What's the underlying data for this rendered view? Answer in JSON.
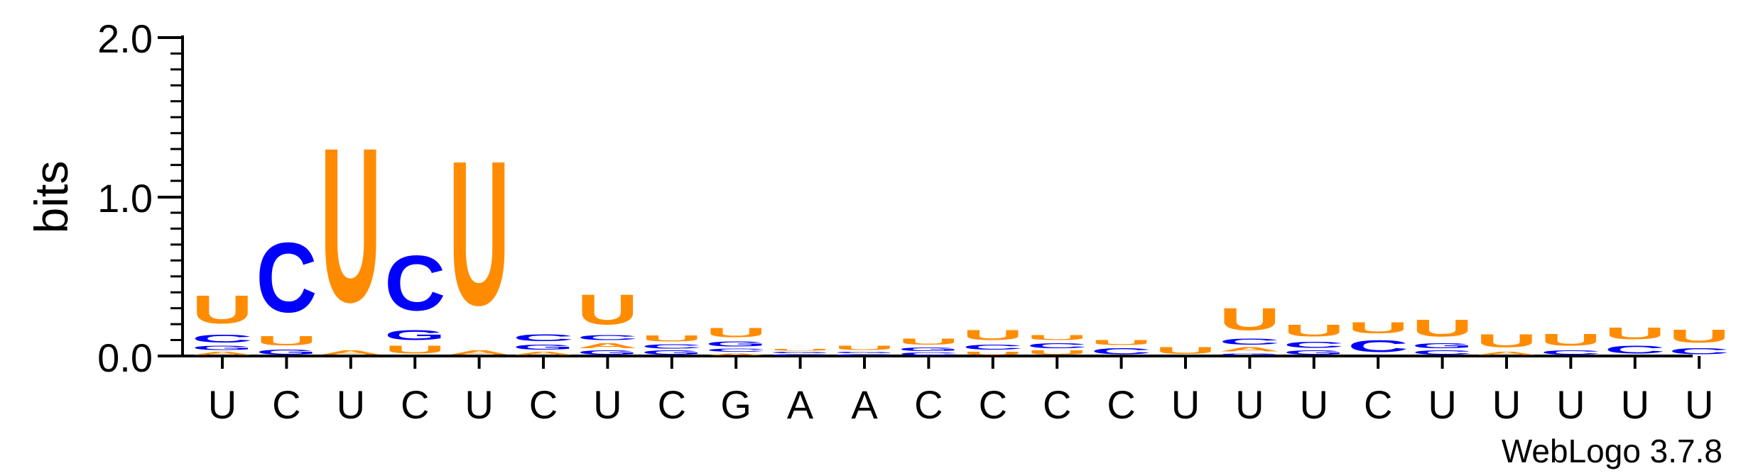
{
  "chart_data": {
    "type": "sequence-logo",
    "ylabel": "bits",
    "ylim": [
      0,
      2
    ],
    "yticks": [
      "0.0",
      "1.0",
      "2.0"
    ],
    "consensus": [
      "U",
      "C",
      "U",
      "C",
      "U",
      "C",
      "U",
      "C",
      "G",
      "A",
      "A",
      "C",
      "C",
      "C",
      "C",
      "U",
      "U",
      "U",
      "C",
      "U",
      "U",
      "U",
      "U",
      "U"
    ],
    "colors": {
      "U": "#FF8C00",
      "A": "#FF8C00",
      "C": "#0000FF",
      "G": "#0000FF"
    },
    "positions": [
      {
        "stack": [
          [
            "A",
            0.03
          ],
          [
            "G",
            0.04
          ],
          [
            "C",
            0.08
          ],
          [
            "U",
            0.28
          ]
        ]
      },
      {
        "stack": [
          [
            "G",
            0.05
          ],
          [
            "U",
            0.09
          ],
          [
            "C",
            0.7
          ]
        ]
      },
      {
        "stack": [
          [
            "A",
            0.04
          ],
          [
            "U",
            1.55
          ]
        ]
      },
      {
        "stack": [
          [
            "U",
            0.08
          ],
          [
            "G",
            0.1
          ],
          [
            "C",
            0.55
          ]
        ]
      },
      {
        "stack": [
          [
            "A",
            0.04
          ],
          [
            "U",
            1.45
          ]
        ]
      },
      {
        "stack": [
          [
            "A",
            0.03
          ],
          [
            "G",
            0.05
          ],
          [
            "C",
            0.07
          ]
        ]
      },
      {
        "stack": [
          [
            "G",
            0.04
          ],
          [
            "A",
            0.05
          ],
          [
            "C",
            0.05
          ],
          [
            "U",
            0.3
          ]
        ]
      },
      {
        "stack": [
          [
            "G",
            0.04
          ],
          [
            "C",
            0.04
          ],
          [
            "U",
            0.06
          ]
        ]
      },
      {
        "stack": [
          [
            "A",
            0.02
          ],
          [
            "C",
            0.03
          ],
          [
            "G",
            0.05
          ],
          [
            "U",
            0.09
          ]
        ]
      },
      {
        "stack": [
          [
            "C",
            0.015
          ],
          [
            "G",
            0.015
          ],
          [
            "U",
            0.02
          ]
        ]
      },
      {
        "stack": [
          [
            "C",
            0.015
          ],
          [
            "G",
            0.015
          ],
          [
            "U",
            0.04
          ]
        ]
      },
      {
        "stack": [
          [
            "C",
            0.025
          ],
          [
            "G",
            0.035
          ],
          [
            "U",
            0.06
          ]
        ]
      },
      {
        "stack": [
          [
            "U",
            0.03
          ],
          [
            "C",
            0.05
          ],
          [
            "U",
            0.1
          ]
        ]
      },
      {
        "stack": [
          [
            "U",
            0.04
          ],
          [
            "C",
            0.05
          ],
          [
            "U",
            0.05
          ]
        ]
      },
      {
        "stack": [
          [
            "C",
            0.06
          ],
          [
            "U",
            0.05
          ]
        ]
      },
      {
        "stack": [
          [
            "U",
            0.07
          ]
        ]
      },
      {
        "stack": [
          [
            "G",
            0.02
          ],
          [
            "A",
            0.04
          ],
          [
            "C",
            0.06
          ],
          [
            "U",
            0.22
          ]
        ]
      },
      {
        "stack": [
          [
            "G",
            0.04
          ],
          [
            "C",
            0.06
          ],
          [
            "U",
            0.12
          ]
        ]
      },
      {
        "stack": [
          [
            "C",
            0.12
          ],
          [
            "U",
            0.11
          ]
        ]
      },
      {
        "stack": [
          [
            "C",
            0.04
          ],
          [
            "G",
            0.05
          ],
          [
            "U",
            0.17
          ]
        ]
      },
      {
        "stack": [
          [
            "A",
            0.03
          ],
          [
            "U",
            0.13
          ]
        ]
      },
      {
        "stack": [
          [
            "C",
            0.04
          ],
          [
            "U",
            0.12
          ]
        ]
      },
      {
        "stack": [
          [
            "C",
            0.08
          ],
          [
            "U",
            0.12
          ]
        ]
      },
      {
        "stack": [
          [
            "C",
            0.06
          ],
          [
            "U",
            0.13
          ]
        ]
      }
    ]
  },
  "footer": {
    "credit": "WebLogo 3.7.8"
  }
}
